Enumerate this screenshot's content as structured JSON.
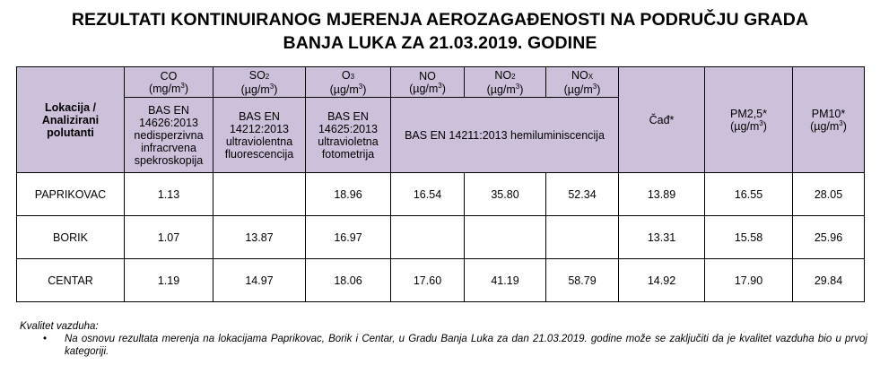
{
  "title": {
    "line1": "REZULTATI KONTINUIRANOG MJERENJA AEROZAGAĐENOSTI NA PODRUČJU GRADA",
    "line2": "BANJA LUKA ZA 21.03.2019. GODINE"
  },
  "table": {
    "location_header": "Lokacija / Analizirani polutanti",
    "columns": {
      "co": {
        "name": "CO",
        "unit": "(mg/m",
        "unit_sup": "3",
        "unit_end": ")",
        "method": "BAS EN 14626:2013 nedisperzivna infracrvena spekroskopija"
      },
      "so2": {
        "name": "SO",
        "name_sub": "2",
        "unit": "(µg/m",
        "unit_sup": "3",
        "unit_end": ")",
        "method": "BAS EN 14212:2013 ultraviolentna fluorescencija"
      },
      "o3": {
        "name": "O",
        "name_sub": "3",
        "unit": "(µg/m",
        "unit_sup": "3",
        "unit_end": ")",
        "method": "BAS EN 14625:2013 ultravioletna fotometrija"
      },
      "no": {
        "name": "NO",
        "unit": "(µg/m",
        "unit_sup": "3",
        "unit_end": ")"
      },
      "no2": {
        "name": "NO",
        "name_sub": "2",
        "unit": "(µg/m",
        "unit_sup": "3",
        "unit_end": ")"
      },
      "nox": {
        "name": "NO",
        "name_sub": "X",
        "unit": "(µg/m",
        "unit_sup": "3",
        "unit_end": ")"
      },
      "nitrogen_method": "BAS EN 14211:2013 hemiluminiscencija",
      "cad": {
        "name": "Čađ*"
      },
      "pm25": {
        "name": "PM2,5*",
        "unit": "(µg/m",
        "unit_sup": "3",
        "unit_end": ")"
      },
      "pm10": {
        "name": "PM10*",
        "unit": "(µg/m",
        "unit_sup": "3",
        "unit_end": ")"
      }
    },
    "rows": [
      {
        "location": "PAPRIKOVAC",
        "co": "1.13",
        "so2": "",
        "o3": "18.96",
        "no": "16.54",
        "no2": "35.80",
        "nox": "52.34",
        "cad": "13.89",
        "pm25": "16.55",
        "pm10": "28.05"
      },
      {
        "location": "BORIK",
        "co": "1.07",
        "so2": "13.87",
        "o3": "16.97",
        "no": "",
        "no2": "",
        "nox": "",
        "cad": "13.31",
        "pm25": "15.58",
        "pm10": "25.96"
      },
      {
        "location": "CENTAR",
        "co": "1.19",
        "so2": "14.97",
        "o3": "18.06",
        "no": "17.60",
        "no2": "41.19",
        "nox": "58.79",
        "cad": "14.92",
        "pm25": "17.90",
        "pm10": "29.84"
      }
    ]
  },
  "notes": {
    "heading": "Kvalitet vazduha:",
    "bullet_symbol": "•",
    "items": [
      "Na osnovu rezultata merenja na lokacijama Paprikovac, Borik i Centar, u Gradu Banja Luka za dan 21.03.2019. godine može se zaključiti da je kvalitet vazduha bio u prvoj kategoriji."
    ]
  }
}
